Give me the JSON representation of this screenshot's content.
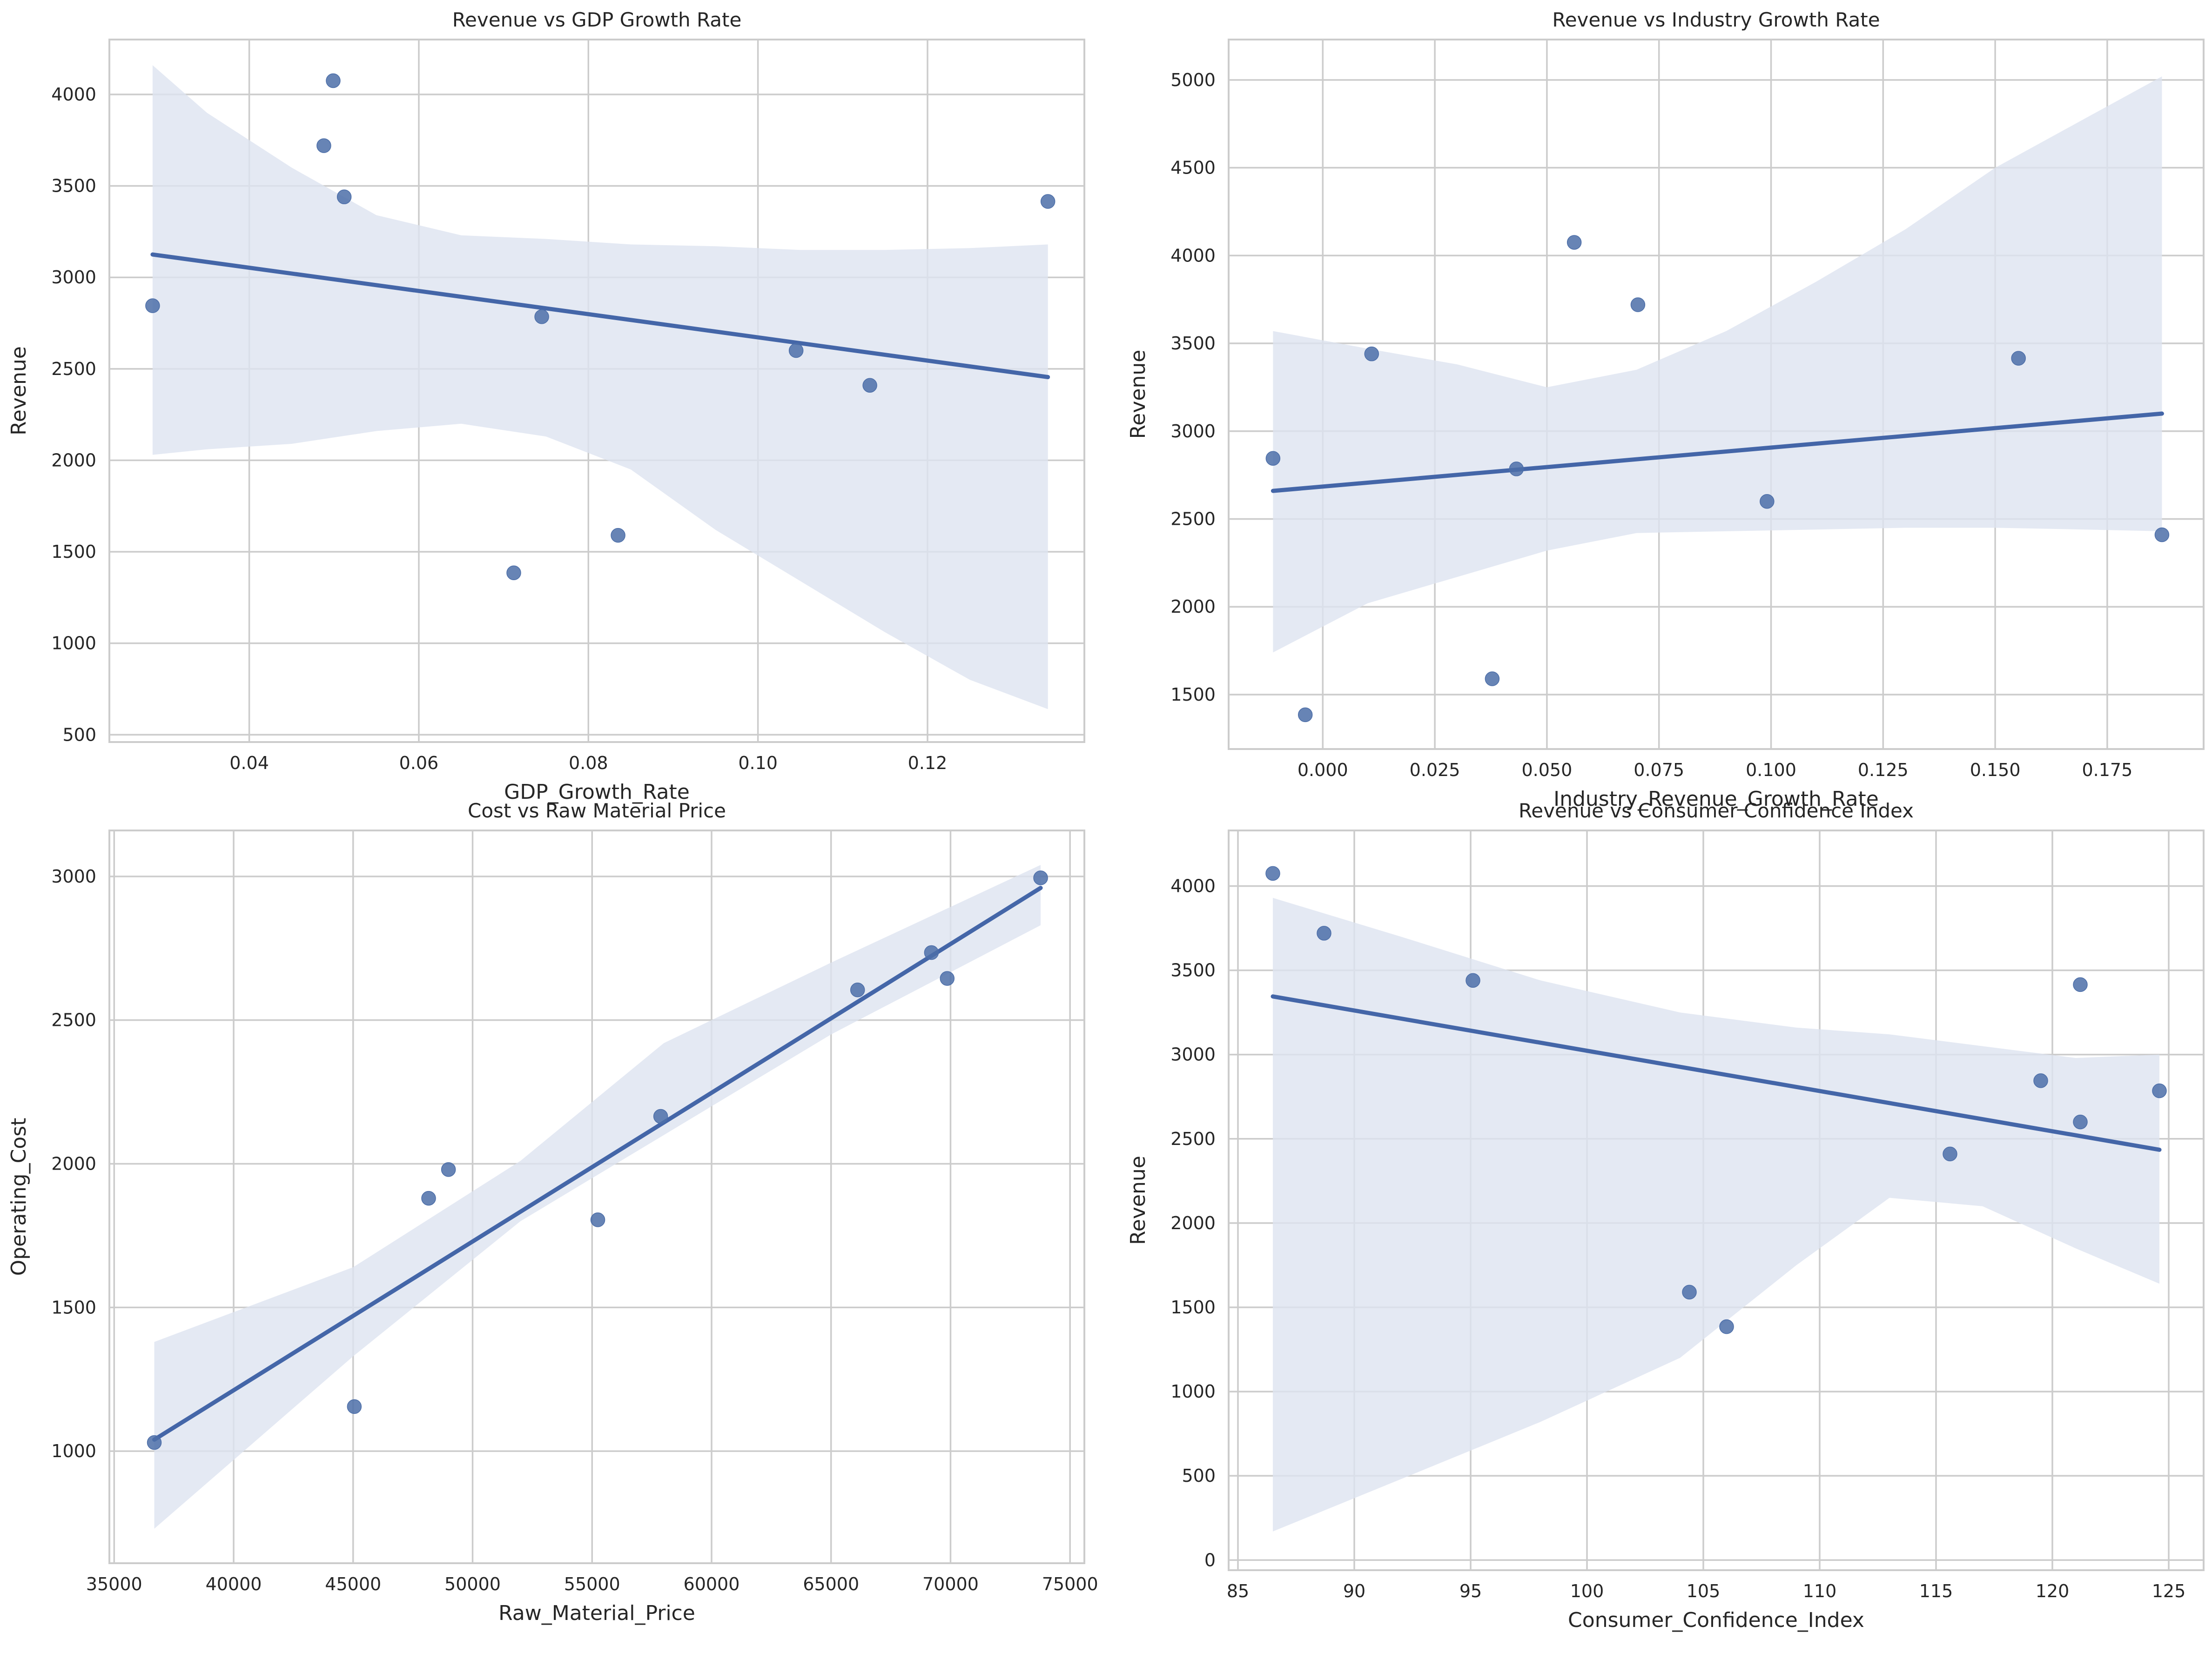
{
  "chart_data": [
    {
      "type": "scatter",
      "title": "Revenue vs GDP Growth Rate",
      "xlabel": "GDP_Growth_Rate",
      "ylabel": "Revenue",
      "xlim": [
        0.0235,
        0.1385
      ],
      "ylim": [
        460,
        4300
      ],
      "xticks": [
        0.04,
        0.06,
        0.08,
        0.1,
        0.12
      ],
      "xtick_labels": [
        "0.04",
        "0.06",
        "0.08",
        "0.10",
        "0.12"
      ],
      "yticks": [
        500,
        1000,
        1500,
        2000,
        2500,
        3000,
        3500,
        4000
      ],
      "ytick_labels": [
        "500",
        "1000",
        "1500",
        "2000",
        "2500",
        "3000",
        "3500",
        "4000"
      ],
      "grid": true,
      "points": {
        "x": [
          0.0286,
          0.0488,
          0.0499,
          0.0512,
          0.0712,
          0.0745,
          0.0835,
          0.1045,
          0.1132,
          0.1342
        ],
        "y": [
          2845,
          3720,
          4075,
          3440,
          1385,
          2785,
          1590,
          2600,
          2410,
          3415
        ]
      },
      "regression_line": {
        "x": [
          0.0286,
          0.1342
        ],
        "y": [
          3125,
          2455
        ]
      },
      "confidence_band": {
        "x": [
          0.0286,
          0.035,
          0.045,
          0.055,
          0.065,
          0.075,
          0.085,
          0.095,
          0.105,
          0.115,
          0.125,
          0.1342
        ],
        "lower": [
          2030,
          2060,
          2090,
          2160,
          2200,
          2130,
          1950,
          1620,
          1340,
          1060,
          800,
          640
        ],
        "upper": [
          4160,
          3900,
          3600,
          3340,
          3230,
          3210,
          3180,
          3170,
          3150,
          3150,
          3160,
          3180
        ]
      }
    },
    {
      "type": "scatter",
      "title": "Revenue vs Industry Growth Rate",
      "xlabel": "Industry_Revenue_Growth_Rate",
      "ylabel": "Revenue",
      "xlim": [
        -0.021,
        0.1965
      ],
      "ylim": [
        1190,
        5230
      ],
      "xticks": [
        0.0,
        0.025,
        0.05,
        0.075,
        0.1,
        0.125,
        0.15,
        0.175
      ],
      "xtick_labels": [
        "0.000",
        "0.025",
        "0.050",
        "0.075",
        "0.100",
        "0.125",
        "0.150",
        "0.175"
      ],
      "yticks": [
        1500,
        2000,
        2500,
        3000,
        3500,
        4000,
        4500,
        5000
      ],
      "ytick_labels": [
        "1500",
        "2000",
        "2500",
        "3000",
        "3500",
        "4000",
        "4500",
        "5000"
      ],
      "grid": true,
      "points": {
        "x": [
          -0.0111,
          -0.0039,
          0.0109,
          0.0378,
          0.0432,
          0.0561,
          0.0703,
          0.0991,
          0.1552,
          0.1872
        ],
        "y": [
          2845,
          1385,
          3440,
          1590,
          2785,
          4075,
          3720,
          2600,
          3415,
          2410
        ]
      },
      "regression_line": {
        "x": [
          -0.0111,
          0.1872
        ],
        "y": [
          2660,
          3100
        ]
      },
      "confidence_band": {
        "x": [
          -0.0111,
          0.01,
          0.03,
          0.05,
          0.07,
          0.09,
          0.11,
          0.13,
          0.15,
          0.17,
          0.1872
        ],
        "lower": [
          1740,
          2020,
          2170,
          2320,
          2420,
          2430,
          2440,
          2450,
          2450,
          2440,
          2430
        ],
        "upper": [
          3570,
          3470,
          3380,
          3250,
          3350,
          3570,
          3850,
          4150,
          4500,
          4780,
          5020
        ]
      }
    },
    {
      "type": "scatter",
      "title": "Cost vs Raw Material Price",
      "xlabel": "Raw_Material_Price",
      "ylabel": "Operating_Cost",
      "xlim": [
        34800,
        75600
      ],
      "ylim": [
        610,
        3160
      ],
      "xticks": [
        35000,
        40000,
        45000,
        50000,
        55000,
        60000,
        65000,
        70000,
        75000
      ],
      "xtick_labels": [
        "35000",
        "40000",
        "45000",
        "50000",
        "55000",
        "60000",
        "65000",
        "70000",
        "75000"
      ],
      "yticks": [
        1000,
        1500,
        2000,
        2500,
        3000
      ],
      "ytick_labels": [
        "1000",
        "1500",
        "2000",
        "2500",
        "3000"
      ],
      "grid": true,
      "points": {
        "x": [
          36680,
          45050,
          48160,
          48990,
          55240,
          57870,
          66110,
          69200,
          69860,
          73770
        ],
        "y": [
          1030,
          1155,
          1880,
          1980,
          1805,
          2165,
          2605,
          2735,
          2645,
          2995
        ]
      },
      "regression_line": {
        "x": [
          36680,
          73770
        ],
        "y": [
          1040,
          2960
        ]
      },
      "confidence_band": {
        "x": [
          36680,
          45000,
          52000,
          58000,
          65000,
          73770
        ],
        "lower": [
          730,
          1330,
          1800,
          2100,
          2450,
          2830
        ],
        "upper": [
          1380,
          1640,
          2010,
          2420,
          2700,
          3040
        ]
      }
    },
    {
      "type": "scatter",
      "title": "Revenue vs Consumer Confidence Index",
      "xlabel": "Consumer_Confidence_Index",
      "ylabel": "Revenue",
      "xlim": [
        84.6,
        126.5
      ],
      "ylim": [
        -60,
        4330
      ],
      "xticks": [
        85,
        90,
        95,
        100,
        105,
        110,
        115,
        120,
        125
      ],
      "xtick_labels": [
        "85",
        "90",
        "95",
        "100",
        "105",
        "110",
        "115",
        "120",
        "125"
      ],
      "yticks": [
        0,
        500,
        1000,
        1500,
        2000,
        2500,
        3000,
        3500,
        4000
      ],
      "ytick_labels": [
        "0",
        "500",
        "1000",
        "1500",
        "2000",
        "2500",
        "3000",
        "3500",
        "4000"
      ],
      "grid": true,
      "points": {
        "x": [
          86.5,
          88.7,
          95.1,
          104.4,
          106.0,
          115.6,
          119.5,
          121.2,
          121.2,
          124.6
        ],
        "y": [
          4075,
          3720,
          3440,
          1590,
          1385,
          2410,
          2845,
          2600,
          3415,
          2785
        ]
      },
      "regression_line": {
        "x": [
          86.5,
          124.6
        ],
        "y": [
          3345,
          2435
        ]
      },
      "confidence_band": {
        "x": [
          86.5,
          92,
          98,
          104,
          109,
          113,
          117,
          121,
          124.6
        ],
        "lower": [
          170,
          480,
          820,
          1200,
          1750,
          2150,
          2100,
          1850,
          1640
        ],
        "upper": [
          3930,
          3700,
          3440,
          3250,
          3160,
          3120,
          3050,
          2980,
          3000
        ]
      }
    }
  ]
}
